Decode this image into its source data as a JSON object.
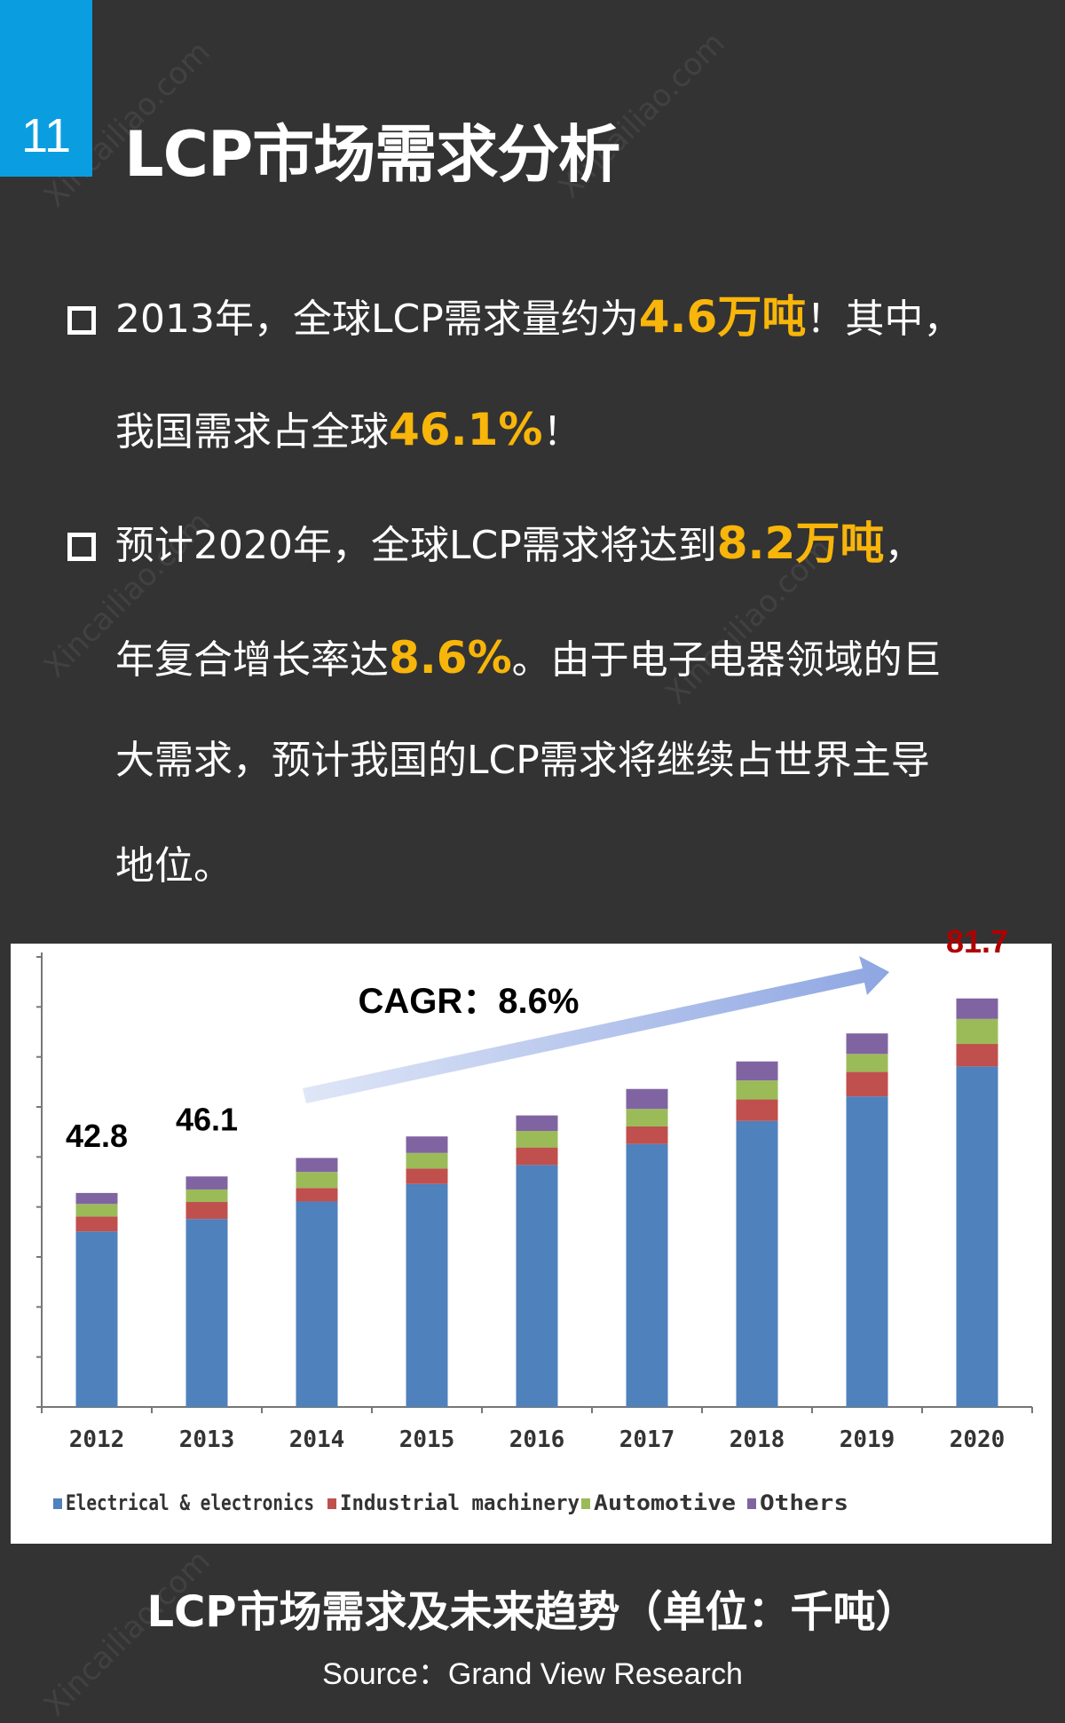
{
  "header": {
    "number": "11",
    "title": "LCP市场需求分析"
  },
  "bullets": [
    {
      "lines": [
        [
          {
            "text": "2013年，全球LCP需求量约为",
            "hl": false
          },
          {
            "text": "4.6万吨",
            "hl": true
          },
          {
            "text": "！其中，",
            "hl": false
          }
        ],
        [
          {
            "text": "我国需求占全球",
            "hl": false
          },
          {
            "text": "46.1%",
            "hl": true
          },
          {
            "text": "！",
            "hl": false
          }
        ]
      ]
    },
    {
      "lines": [
        [
          {
            "text": "预计2020年，全球LCP需求将达到",
            "hl": false
          },
          {
            "text": "8.2万吨",
            "hl": true
          },
          {
            "text": "，",
            "hl": false
          }
        ],
        [
          {
            "text": "年复合增长率达",
            "hl": false
          },
          {
            "text": "8.6%",
            "hl": true
          },
          {
            "text": "。由于电子电器领域的巨",
            "hl": false
          }
        ],
        [
          {
            "text": "大需求，预计我国的LCP需求将继续占世界主导",
            "hl": false
          }
        ],
        [
          {
            "text": "地位。",
            "hl": false
          }
        ]
      ]
    }
  ],
  "colors": {
    "accent": "#0a9ee0",
    "highlight": "#f8b50a",
    "background": "#333333"
  },
  "chart_data": {
    "type": "bar",
    "stacked": true,
    "categories": [
      "2012",
      "2013",
      "2014",
      "2015",
      "2016",
      "2017",
      "2018",
      "2019",
      "2020"
    ],
    "series": [
      {
        "name": "Electrical & electronics",
        "color": "#4f81bd",
        "values": [
          35.1,
          37.6,
          41.1,
          44.6,
          48.4,
          52.6,
          57.2,
          62.1,
          68.1
        ]
      },
      {
        "name": "Industrial machinery",
        "color": "#c0504d",
        "values": [
          3.0,
          3.4,
          2.7,
          3.1,
          3.5,
          3.5,
          4.3,
          4.9,
          4.5
        ]
      },
      {
        "name": "Automotive",
        "color": "#9bbb59",
        "values": [
          2.5,
          2.5,
          3.2,
          3.1,
          3.3,
          3.5,
          3.8,
          3.6,
          5.0
        ]
      },
      {
        "name": "Others",
        "color": "#8064a2",
        "values": [
          2.2,
          2.6,
          2.8,
          3.3,
          3.1,
          4.0,
          3.8,
          4.1,
          4.1
        ]
      }
    ],
    "data_labels": [
      {
        "category": "2012",
        "text": "42.8",
        "color": "#000000"
      },
      {
        "category": "2013",
        "text": "46.1",
        "color": "#000000"
      },
      {
        "category": "2020",
        "text": "81.7",
        "color": "#b00000"
      }
    ],
    "annotation": "CAGR：8.6%",
    "ylim": [
      0,
      90
    ],
    "ytick_step": 10,
    "legend": "bottom",
    "grid": false,
    "title": "LCP市场需求及未来趋势（单位：千吨）",
    "source": "Source：Grand View Research"
  }
}
